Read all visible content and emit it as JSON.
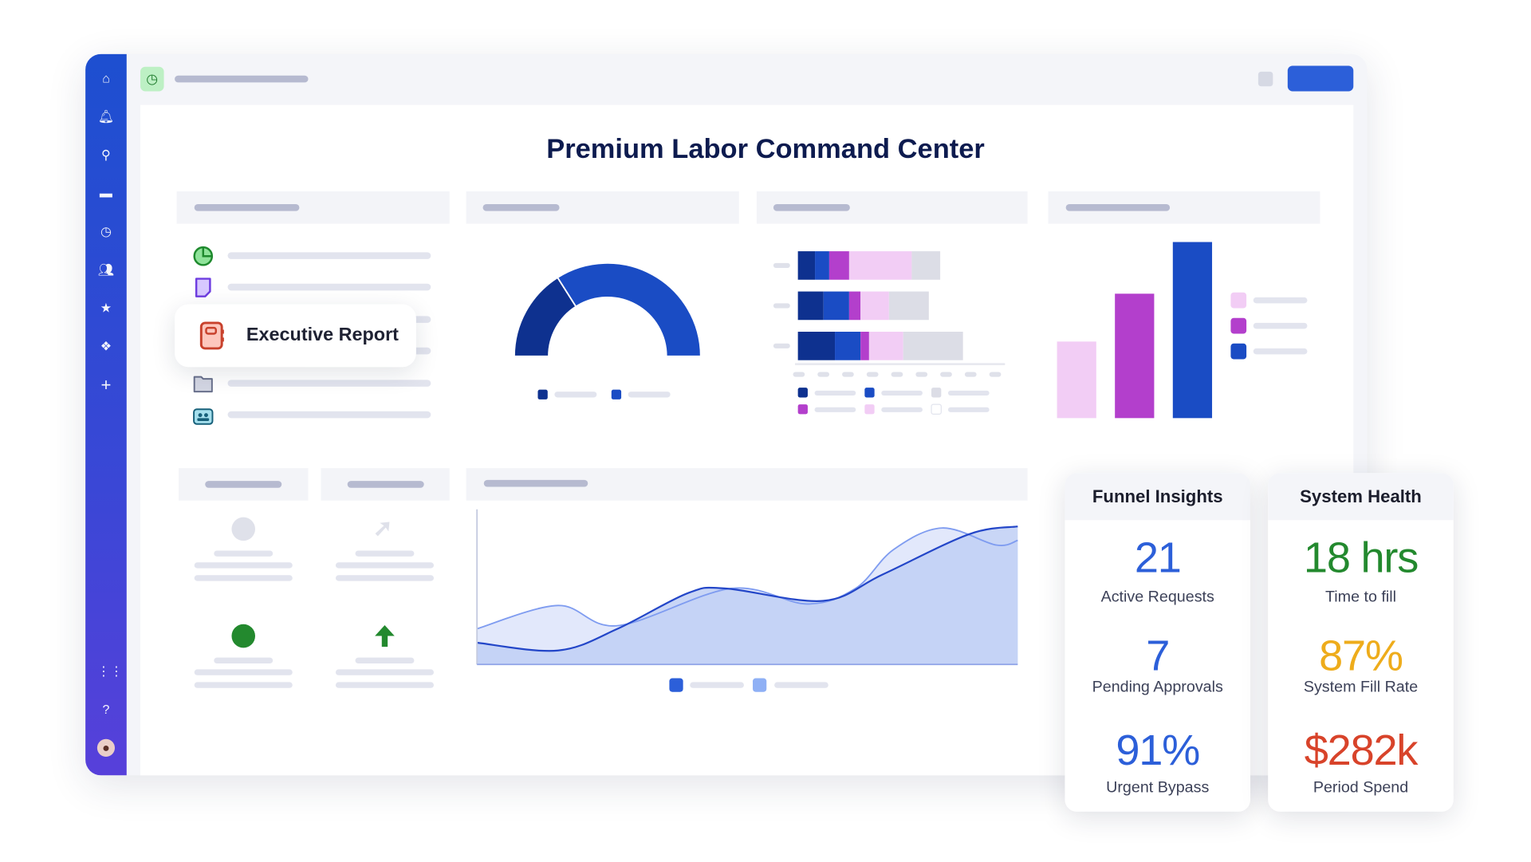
{
  "page": {
    "title": "Premium Labor Command Center"
  },
  "popup": {
    "label": "Executive Report",
    "icon": "notebook-icon"
  },
  "sidebar": {
    "icons": [
      "home-icon",
      "bell-icon",
      "search-icon",
      "folder-icon",
      "clock-icon",
      "users-icon",
      "star-icon",
      "modules-icon",
      "plus-icon",
      "grid-icon",
      "help-icon",
      "avatar-icon"
    ]
  },
  "colors": {
    "dark_blue": "#0e318f",
    "blue": "#1a4cc4",
    "purple": "#b33fcc",
    "pink": "#f2cdf5",
    "gray": "#dcdde6",
    "area_front": "#c0cff5",
    "area_back": "#e2e8fb",
    "green": "#23892e",
    "amber": "#eeac1b",
    "red": "#d8432a"
  },
  "charts": {
    "gauge": {
      "fractions": [
        0.32,
        0.68
      ]
    },
    "stacked_bars": [
      [
        6,
        5,
        7,
        22,
        10
      ],
      [
        9,
        9,
        4,
        10,
        14
      ],
      [
        13,
        9,
        3,
        12,
        21
      ]
    ],
    "bars": [
      40,
      65,
      92
    ],
    "area": {
      "back": [
        [
          0,
          23
        ],
        [
          15,
          38
        ],
        [
          26,
          25
        ],
        [
          47,
          49
        ],
        [
          61,
          39
        ],
        [
          70,
          49
        ],
        [
          77,
          74
        ],
        [
          86,
          88
        ],
        [
          96,
          77
        ],
        [
          100,
          80
        ]
      ],
      "front": [
        [
          0,
          14
        ],
        [
          15,
          9
        ],
        [
          26,
          23
        ],
        [
          39,
          46
        ],
        [
          46,
          49
        ],
        [
          64,
          41
        ],
        [
          75,
          58
        ],
        [
          91,
          84
        ],
        [
          100,
          89
        ]
      ]
    }
  },
  "funnel": {
    "title": "Funnel Insights",
    "metrics": [
      {
        "value": "21",
        "label": "Active Requests",
        "color": "#2c5fd9"
      },
      {
        "value": "7",
        "label": "Pending Approvals",
        "color": "#2c5fd9"
      },
      {
        "value": "91%",
        "label": "Urgent Bypass",
        "color": "#2c5fd9"
      }
    ]
  },
  "health": {
    "title": "System Health",
    "metrics": [
      {
        "value": "18 hrs",
        "label": "Time to fill",
        "color": "#23892e"
      },
      {
        "value": "87%",
        "label": "System Fill Rate",
        "color": "#eeac1b"
      },
      {
        "value": "$282k",
        "label": "Period Spend",
        "color": "#d8432a"
      }
    ]
  }
}
